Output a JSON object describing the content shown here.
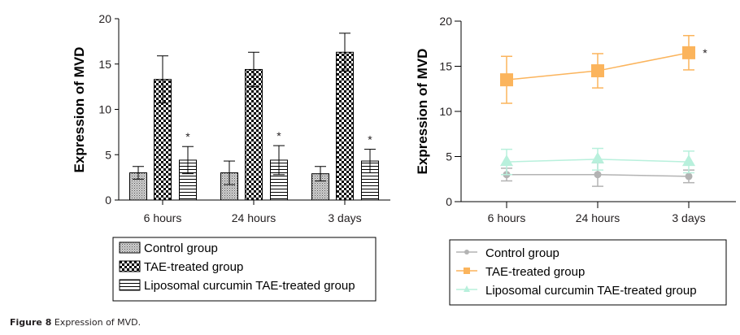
{
  "caption": {
    "label": "Figure 8",
    "text": "Expression of MVD."
  },
  "chart_data": [
    {
      "type": "bar",
      "title": "",
      "xlabel": "",
      "ylabel": "Expression of MVD",
      "ylim": [
        0,
        20
      ],
      "yticks": [
        0,
        5,
        10,
        15,
        20
      ],
      "categories": [
        "6 hours",
        "24 hours",
        "3 days"
      ],
      "series": [
        {
          "name": "Control group",
          "pattern": "fine-dots",
          "values": [
            3.0,
            3.0,
            2.9
          ],
          "errors": [
            0.7,
            1.3,
            0.8
          ]
        },
        {
          "name": "TAE-treated group",
          "pattern": "checkerboard",
          "values": [
            13.3,
            14.4,
            16.3
          ],
          "errors": [
            2.6,
            1.9,
            2.1
          ]
        },
        {
          "name": "Liposomal curcumin TAE-treated group",
          "pattern": "horizontal-lines",
          "values": [
            4.4,
            4.4,
            4.3
          ],
          "errors": [
            1.5,
            1.6,
            1.3
          ]
        }
      ],
      "annotations": [
        {
          "text": "*",
          "category": "6 hours",
          "series": "Liposomal curcumin TAE-treated group"
        },
        {
          "text": "*",
          "category": "24 hours",
          "series": "Liposomal curcumin TAE-treated group"
        },
        {
          "text": "*",
          "category": "3 days",
          "series": "Liposomal curcumin TAE-treated group"
        }
      ],
      "legend": "bottom"
    },
    {
      "type": "line",
      "title": "",
      "xlabel": "",
      "ylabel": "Expression of MVD",
      "ylim": [
        0,
        20
      ],
      "yticks": [
        0,
        5,
        10,
        15,
        20
      ],
      "categories": [
        "6 hours",
        "24 hours",
        "3 days"
      ],
      "series": [
        {
          "name": "Control group",
          "color": "#b3b3b3",
          "marker": "circle",
          "values": [
            3.0,
            3.0,
            2.8
          ],
          "errors": [
            0.7,
            1.3,
            0.7
          ]
        },
        {
          "name": "TAE-treated group",
          "color": "#fbb45c",
          "marker": "square",
          "values": [
            13.5,
            14.5,
            16.5
          ],
          "errors": [
            2.6,
            1.9,
            1.9
          ]
        },
        {
          "name": "Liposomal curcumin TAE-treated group",
          "color": "#b8f0dc",
          "marker": "triangle",
          "values": [
            4.4,
            4.7,
            4.4
          ],
          "errors": [
            1.4,
            1.2,
            1.2
          ]
        }
      ],
      "annotations": [
        {
          "text": "*",
          "category": "3 days",
          "series": "TAE-treated group"
        }
      ],
      "legend": "bottom"
    }
  ]
}
